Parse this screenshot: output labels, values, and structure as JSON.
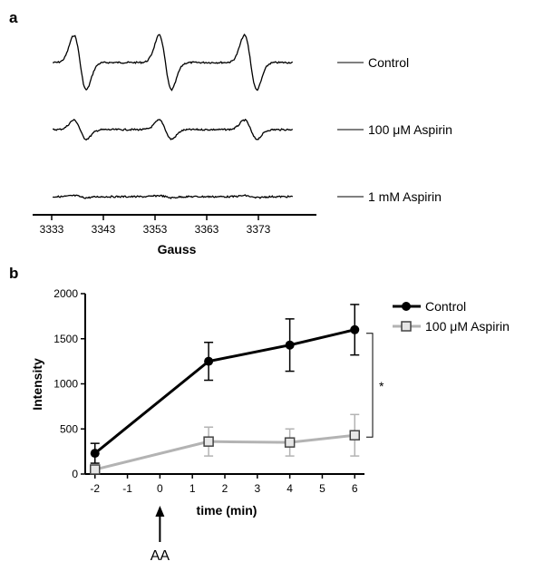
{
  "chart_data": [
    {
      "panel": "a",
      "type": "line",
      "xlabel": "Gauss",
      "ylabel": "",
      "xlim": [
        3333,
        3380
      ],
      "x_ticks": [
        "3333",
        "3343",
        "3353",
        "3363",
        "3373"
      ],
      "grid": false,
      "legend_position": "right",
      "line_centers_gauss": [
        3338.5,
        3355.0,
        3371.5
      ],
      "series": [
        {
          "name": "Control",
          "relative_amplitude": 1.0
        },
        {
          "name": "100 μM Aspirin",
          "relative_amplitude": 0.35
        },
        {
          "name": "1 mM Aspirin",
          "relative_amplitude": 0.04
        }
      ]
    },
    {
      "panel": "b",
      "type": "line",
      "xlabel": "time (min)",
      "ylabel": "Intensity",
      "xlim": [
        -2.3,
        6.3
      ],
      "ylim": [
        0,
        2000
      ],
      "x_ticks": [
        "-2",
        "-1",
        "0",
        "1",
        "2",
        "3",
        "4",
        "5",
        "6"
      ],
      "y_ticks": [
        "0",
        "500",
        "1000",
        "1500",
        "2000"
      ],
      "grid": false,
      "legend_position": "top-right",
      "annotation": "AA",
      "annotation_x": 0,
      "significance_label": "*",
      "series": [
        {
          "name": "Control",
          "color": "#000000",
          "marker": "filled-circle",
          "points": [
            {
              "x": -2,
              "y": 230,
              "err": 110
            },
            {
              "x": 1.5,
              "y": 1250,
              "err": 210
            },
            {
              "x": 4,
              "y": 1430,
              "err": 290
            },
            {
              "x": 6,
              "y": 1600,
              "err": 280
            }
          ]
        },
        {
          "name": "100 μM Aspirin",
          "color": "#b3b3b3",
          "marker": "open-square",
          "points": [
            {
              "x": -2,
              "y": 50,
              "err": 40
            },
            {
              "x": 1.5,
              "y": 360,
              "err": 160
            },
            {
              "x": 4,
              "y": 350,
              "err": 150
            },
            {
              "x": 6,
              "y": 430,
              "err": 230
            }
          ]
        }
      ]
    }
  ]
}
